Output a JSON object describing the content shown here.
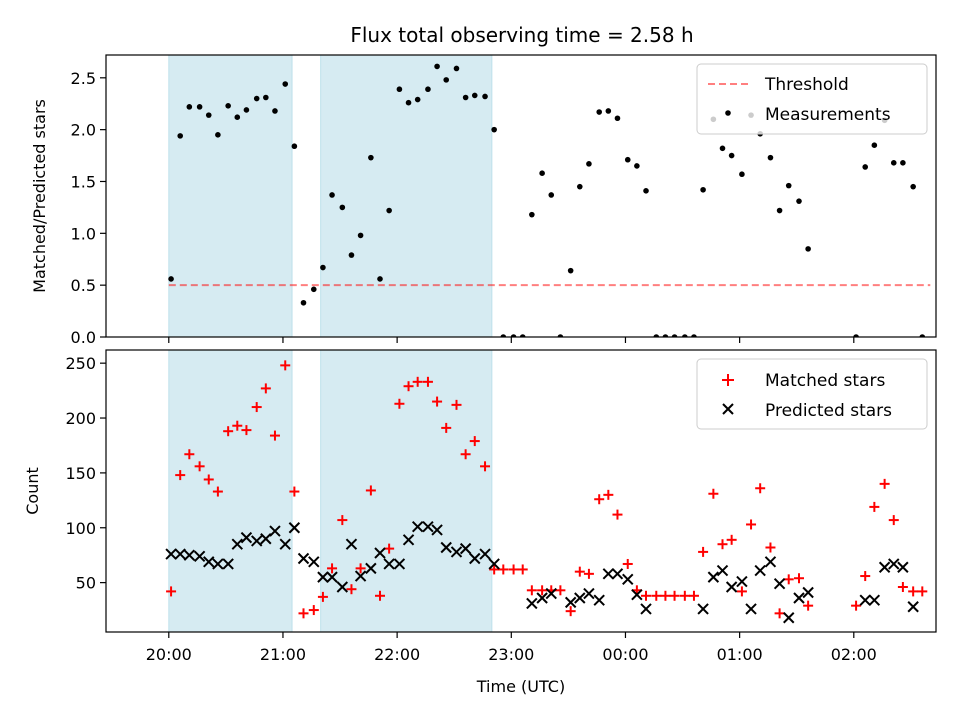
{
  "title": "Flux total observing time = 2.58 h",
  "x_axis": {
    "label": "Time (UTC)",
    "ticks": [
      "20:00",
      "21:00",
      "22:00",
      "23:00",
      "00:00",
      "01:00",
      "02:00"
    ],
    "range_hours": [
      19.45,
      26.72
    ]
  },
  "shaded_intervals_hours": [
    [
      20.0,
      21.08
    ],
    [
      21.33,
      22.83
    ]
  ],
  "colors": {
    "shade": "#add8e6",
    "threshold": "#ff0000",
    "measurements": "#000000",
    "matched": "#ff0000",
    "predicted": "#000000"
  },
  "chart_data": [
    {
      "type": "scatter",
      "panel": "top",
      "ylabel": "Matched/Predicted stars",
      "ylim": [
        0,
        2.72
      ],
      "yticks": [
        "0.0",
        "0.5",
        "1.0",
        "1.5",
        "2.0",
        "2.5"
      ],
      "grid": false,
      "legend_position": "top-right",
      "threshold": {
        "name": "Threshold",
        "value": 0.5,
        "x_range": [
          20.0,
          26.67
        ]
      },
      "series": [
        {
          "name": "Measurements",
          "x": [
            20.02,
            20.1,
            20.18,
            20.27,
            20.35,
            20.43,
            20.52,
            20.6,
            20.68,
            20.77,
            20.85,
            20.93,
            21.02,
            21.1,
            21.18,
            21.27,
            21.35,
            21.43,
            21.52,
            21.6,
            21.68,
            21.77,
            21.85,
            21.93,
            22.02,
            22.1,
            22.18,
            22.27,
            22.35,
            22.43,
            22.52,
            22.6,
            22.68,
            22.77,
            22.85,
            22.93,
            23.02,
            23.1,
            23.18,
            23.27,
            23.35,
            23.43,
            23.52,
            23.6,
            23.68,
            23.77,
            23.85,
            23.93,
            24.02,
            24.1,
            24.18,
            24.27,
            24.35,
            24.43,
            24.52,
            24.6,
            24.68,
            24.77,
            24.85,
            24.93,
            25.02,
            25.1,
            25.18,
            25.27,
            25.35,
            25.43,
            25.52,
            25.6,
            26.02,
            26.1,
            26.18,
            26.27,
            26.35,
            26.43,
            26.52,
            26.6
          ],
          "y": [
            0.56,
            1.94,
            2.22,
            2.22,
            2.14,
            1.95,
            2.23,
            2.12,
            2.19,
            2.3,
            2.31,
            2.18,
            2.44,
            1.84,
            0.33,
            0.46,
            0.67,
            1.37,
            1.25,
            0.79,
            0.98,
            1.73,
            0.56,
            1.22,
            2.39,
            2.26,
            2.29,
            2.39,
            2.61,
            2.48,
            2.59,
            2.31,
            2.33,
            2.32,
            2.0,
            0.0,
            0.0,
            0.0,
            1.18,
            1.58,
            1.37,
            0.0,
            0.64,
            1.45,
            1.67,
            2.17,
            2.18,
            2.11,
            1.71,
            1.65,
            1.41,
            0.0,
            0.0,
            0.0,
            0.0,
            0.0,
            1.42,
            2.1,
            1.82,
            1.75,
            1.57,
            2.14,
            1.96,
            1.73,
            1.22,
            1.46,
            1.31,
            0.85,
            0.0,
            1.64,
            1.85,
            2.09,
            1.68,
            1.68,
            1.45,
            0.0
          ]
        }
      ]
    },
    {
      "type": "scatter",
      "panel": "bottom",
      "ylabel": "Count",
      "ylim": [
        5,
        262
      ],
      "yticks": [
        "50",
        "100",
        "150",
        "200",
        "250"
      ],
      "grid": false,
      "legend_position": "top-right",
      "series": [
        {
          "name": "Matched stars",
          "x": [
            20.02,
            20.1,
            20.18,
            20.27,
            20.35,
            20.43,
            20.52,
            20.6,
            20.68,
            20.77,
            20.85,
            20.93,
            21.02,
            21.1,
            21.18,
            21.27,
            21.35,
            21.43,
            21.52,
            21.6,
            21.68,
            21.77,
            21.85,
            21.93,
            22.02,
            22.1,
            22.18,
            22.27,
            22.35,
            22.43,
            22.52,
            22.6,
            22.68,
            22.77,
            22.85,
            22.93,
            23.02,
            23.1,
            23.18,
            23.27,
            23.35,
            23.43,
            23.52,
            23.6,
            23.68,
            23.77,
            23.85,
            23.93,
            24.02,
            24.1,
            24.18,
            24.27,
            24.35,
            24.43,
            24.52,
            24.6,
            24.68,
            24.77,
            24.85,
            24.93,
            25.02,
            25.1,
            25.18,
            25.27,
            25.35,
            25.43,
            25.52,
            25.6,
            26.02,
            26.1,
            26.18,
            26.27,
            26.35,
            26.43,
            26.52,
            26.6
          ],
          "y": [
            42,
            148,
            167,
            156,
            144,
            133,
            188,
            193,
            189,
            210,
            227,
            184,
            248,
            133,
            22,
            25,
            37,
            63,
            107,
            44,
            63,
            134,
            38,
            81,
            213,
            229,
            233,
            233,
            215,
            191,
            212,
            167,
            179,
            156,
            62,
            62,
            62,
            62,
            43,
            43,
            43,
            43,
            24,
            60,
            58,
            126,
            130,
            112,
            67,
            43,
            38,
            38,
            38,
            38,
            38,
            38,
            78,
            131,
            85,
            89,
            42,
            103,
            136,
            82,
            22,
            53,
            54,
            29,
            29,
            56,
            119,
            140,
            107,
            46,
            42,
            42
          ]
        },
        {
          "name": "Predicted stars",
          "x": [
            20.02,
            20.1,
            20.18,
            20.27,
            20.35,
            20.43,
            20.52,
            20.6,
            20.68,
            20.77,
            20.85,
            20.93,
            21.02,
            21.1,
            21.18,
            21.27,
            21.35,
            21.43,
            21.52,
            21.6,
            21.68,
            21.77,
            21.85,
            21.93,
            22.02,
            22.1,
            22.18,
            22.27,
            22.35,
            22.43,
            22.52,
            22.6,
            22.68,
            22.77,
            22.85,
            23.18,
            23.27,
            23.35,
            23.52,
            23.6,
            23.68,
            23.77,
            23.85,
            23.93,
            24.02,
            24.1,
            24.18,
            24.68,
            24.77,
            24.85,
            24.93,
            25.02,
            25.1,
            25.18,
            25.27,
            25.35,
            25.43,
            25.52,
            25.6,
            26.1,
            26.18,
            26.27,
            26.35,
            26.43,
            26.52
          ],
          "y": [
            76,
            76,
            75,
            74,
            69,
            67,
            67,
            85,
            91,
            88,
            90,
            97,
            85,
            100,
            72,
            69,
            55,
            55,
            46,
            85,
            56,
            63,
            77,
            67,
            67,
            89,
            101,
            101,
            98,
            82,
            78,
            81,
            72,
            76,
            67,
            31,
            36,
            40,
            32,
            36,
            40,
            34,
            58,
            58,
            53,
            39,
            26,
            26,
            55,
            61,
            46,
            51,
            26,
            61,
            69,
            49,
            18,
            36,
            41,
            34,
            34,
            64,
            67,
            64,
            28
          ]
        }
      ]
    }
  ]
}
